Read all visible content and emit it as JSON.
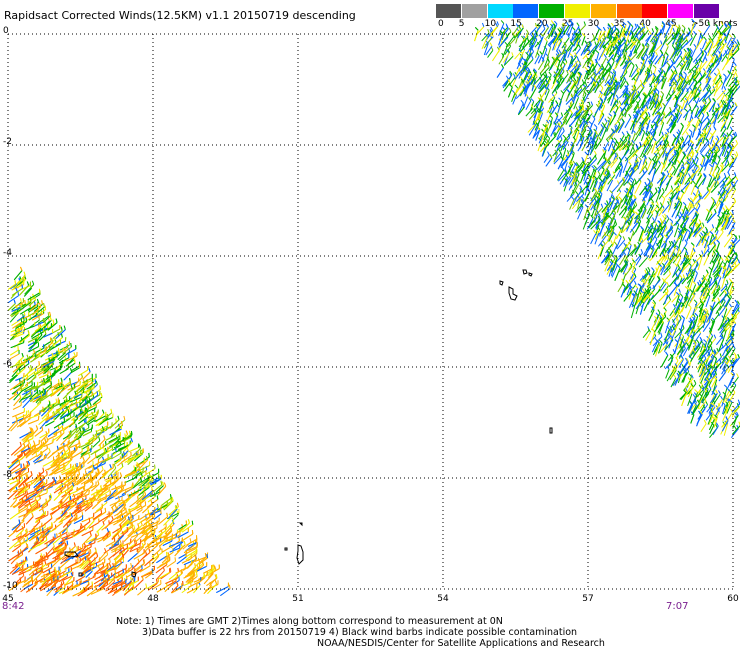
{
  "title": "Rapidsact Corrected Winds(12.5KM) v1.1 20150719 descending",
  "colorbar": {
    "labels": [
      "0",
      "5",
      "10",
      "15",
      "20",
      "25",
      "30",
      "35",
      "40",
      "45",
      ">50 knots"
    ],
    "colors": [
      "#555555",
      "#a0a0a0",
      "#00d8ff",
      "#0066ff",
      "#00b000",
      "#f0f000",
      "#ffb000",
      "#ff6000",
      "#ff0000",
      "#ff00ff",
      "#6a00a8"
    ]
  },
  "map": {
    "lon_ticks": [
      "45",
      "48",
      "51",
      "54",
      "57",
      "60"
    ],
    "lat_ticks": [
      "0",
      "-2",
      "-4",
      "-6",
      "-8",
      "-10"
    ],
    "time_left": "8:42",
    "time_right": "7:07"
  },
  "notes": {
    "line1": "Note: 1) Times are GMT 2)Times along bottom correspond to measurement at 0N",
    "line2": "3)Data buffer is 22 hrs from 20150719 4) Black wind barbs indicate possible contamination",
    "line3": "NOAA/NESDIS/Center for Satellite Applications and Research"
  }
}
